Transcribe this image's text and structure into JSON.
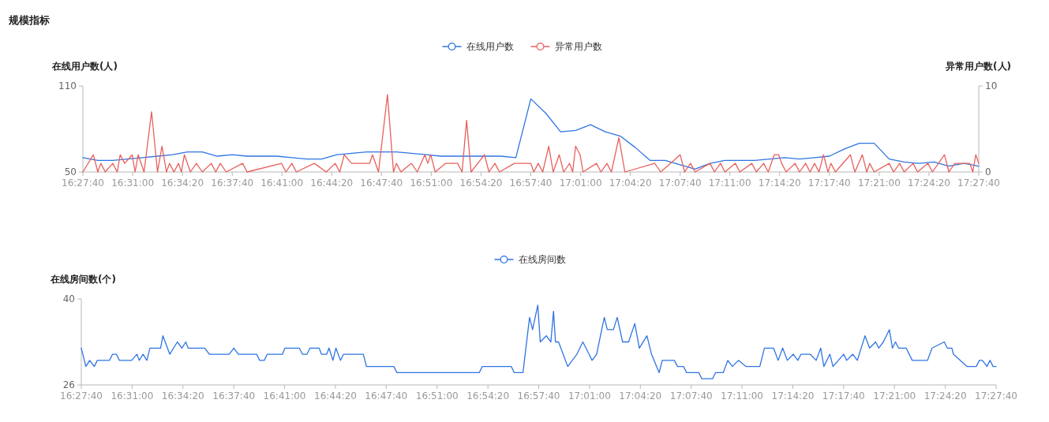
{
  "chart_data": [
    {
      "type": "line",
      "title": "规模指标",
      "ylabel": "在线用户数(人)",
      "y2label": "异常用户数(人)",
      "legend": "top",
      "xlim": [
        16.4611,
        17.4611
      ],
      "xticks": [
        {
          "value": 16.4611,
          "label": "16:27:40"
        },
        {
          "value": 16.5167,
          "label": "16:31:00"
        },
        {
          "value": 16.5722,
          "label": "16:34:20"
        },
        {
          "value": 16.6278,
          "label": "16:37:40"
        },
        {
          "value": 16.6833,
          "label": "16:41:00"
        },
        {
          "value": 16.7389,
          "label": "16:44:20"
        },
        {
          "value": 16.7944,
          "label": "16:47:40"
        },
        {
          "value": 16.85,
          "label": "16:51:00"
        },
        {
          "value": 16.9056,
          "label": "16:54:20"
        },
        {
          "value": 16.9611,
          "label": "16:57:40"
        },
        {
          "value": 17.0167,
          "label": "17:01:00"
        },
        {
          "value": 17.0722,
          "label": "17:04:20"
        },
        {
          "value": 17.1278,
          "label": "17:07:40"
        },
        {
          "value": 17.1833,
          "label": "17:11:00"
        },
        {
          "value": 17.2389,
          "label": "17:14:20"
        },
        {
          "value": 17.2944,
          "label": "17:17:40"
        },
        {
          "value": 17.35,
          "label": "17:21:00"
        },
        {
          "value": 17.4056,
          "label": "17:24:20"
        },
        {
          "value": 17.4611,
          "label": "17:27:40"
        }
      ],
      "ylim": [
        50,
        110
      ],
      "yticks": [
        50,
        110
      ],
      "y2lim": [
        0,
        10
      ],
      "y2ticks": [
        0,
        10
      ],
      "x": [
        16.4611,
        16.4778,
        16.4944,
        16.5111,
        16.5278,
        16.5444,
        16.5611,
        16.5778,
        16.5944,
        16.6111,
        16.6278,
        16.6444,
        16.6611,
        16.6778,
        16.6944,
        16.7111,
        16.7278,
        16.7444,
        16.7611,
        16.7778,
        16.7944,
        16.8111,
        16.8278,
        16.8444,
        16.8611,
        16.8778,
        16.8944,
        16.9111,
        16.9278,
        16.9444,
        16.9611,
        16.9778,
        16.9944,
        17.0111,
        17.0278,
        17.0444,
        17.0611,
        17.0778,
        17.0944,
        17.1111,
        17.1278,
        17.1444,
        17.1611,
        17.1778,
        17.1944,
        17.2111,
        17.2278,
        17.2444,
        17.2611,
        17.2778,
        17.2944,
        17.3111,
        17.3278,
        17.3444,
        17.3611,
        17.3778,
        17.3944,
        17.4111,
        17.4278,
        17.4444,
        17.4611
      ],
      "series": [
        {
          "name": "在线用户数",
          "color": "#2f74e3",
          "values": [
            60,
            58,
            58,
            59,
            60,
            61,
            62,
            64,
            64,
            61,
            62,
            61,
            61,
            61,
            60,
            59,
            59,
            62,
            63,
            64,
            64,
            64,
            63,
            62,
            61,
            61,
            61,
            61,
            61,
            60,
            101,
            91,
            78,
            79,
            83,
            78,
            75,
            67,
            58,
            58,
            55,
            52,
            56,
            58,
            58,
            58,
            59,
            60,
            59,
            60,
            61,
            66,
            70,
            70,
            59,
            57,
            56,
            57,
            54,
            56,
            54
          ]
        },
        {
          "name": "异常用户数",
          "color": "#e8605c",
          "axis": "y2",
          "x": [
            16.4611,
            16.4728,
            16.4778,
            16.4811,
            16.4861,
            16.4944,
            16.4994,
            16.5028,
            16.5078,
            16.5161,
            16.5194,
            16.5228,
            16.5294,
            16.5378,
            16.5444,
            16.5494,
            16.5544,
            16.5578,
            16.5628,
            16.5678,
            16.5711,
            16.5744,
            16.5811,
            16.5878,
            16.5944,
            16.6044,
            16.6094,
            16.6144,
            16.6211,
            16.6394,
            16.6444,
            16.6828,
            16.6878,
            16.6944,
            16.6994,
            16.7194,
            16.7328,
            16.7428,
            16.7478,
            16.7528,
            16.7611,
            16.7811,
            16.7844,
            16.7911,
            16.8011,
            16.8078,
            16.8111,
            16.8161,
            16.8278,
            16.8344,
            16.8428,
            16.8461,
            16.8494,
            16.8544,
            16.8661,
            16.8794,
            16.8844,
            16.8894,
            16.8944,
            16.9094,
            16.9144,
            16.9211,
            16.9261,
            16.9428,
            16.9478,
            16.9611,
            16.9644,
            16.9694,
            16.9744,
            16.9811,
            16.9861,
            16.9928,
            16.9978,
            17.0044,
            17.0078,
            17.0111,
            17.0161,
            17.0194,
            17.0344,
            17.0394,
            17.0461,
            17.0511,
            17.0594,
            17.0661,
            17.0994,
            17.1061,
            17.1278,
            17.1328,
            17.1394,
            17.1444,
            17.1611,
            17.1661,
            17.1728,
            17.1778,
            17.1894,
            17.1944,
            17.2078,
            17.2128,
            17.2211,
            17.2261,
            17.2328,
            17.2378,
            17.2411,
            17.2461,
            17.2561,
            17.2611,
            17.2678,
            17.2728,
            17.2778,
            17.2828,
            17.2878,
            17.2928,
            17.2961,
            17.3011,
            17.3178,
            17.3228,
            17.3311,
            17.3361,
            17.3394,
            17.3444,
            17.3611,
            17.3661,
            17.3728,
            17.3778,
            17.3878,
            17.3928,
            17.4044,
            17.4094,
            17.4228,
            17.4278,
            17.4344,
            17.4511,
            17.4544,
            17.4578,
            17.4611
          ],
          "values": [
            0,
            2,
            0,
            1,
            0,
            1,
            0,
            2,
            1,
            2,
            0,
            2,
            0,
            7,
            0,
            3,
            0,
            1,
            0,
            1,
            0,
            2,
            0,
            1,
            0,
            1,
            0,
            1,
            0,
            1,
            0,
            1,
            0,
            1,
            0,
            1,
            0,
            1,
            0,
            2,
            1,
            1,
            2,
            0,
            9,
            0,
            1,
            0,
            1,
            0,
            2,
            1,
            2,
            0,
            1,
            1,
            0,
            6,
            0,
            2,
            0,
            1,
            0,
            1,
            1,
            1,
            0,
            1,
            0,
            3,
            0,
            2,
            0,
            1,
            0,
            3,
            2,
            0,
            1,
            0,
            1,
            0,
            4,
            0,
            1,
            0,
            2,
            0,
            1,
            0,
            1,
            0,
            1,
            0,
            1,
            0,
            1,
            0,
            1,
            0,
            2,
            2,
            1,
            0,
            1,
            0,
            1,
            0,
            1,
            0,
            2,
            0,
            1,
            0,
            2,
            0,
            2,
            0,
            1,
            0,
            1,
            0,
            1,
            0,
            1,
            0,
            1,
            0,
            2,
            0,
            1,
            1,
            0,
            2,
            1
          ]
        }
      ]
    },
    {
      "type": "line",
      "ylabel": "在线房间数(个)",
      "legend": "top",
      "xlim": [
        16.4611,
        17.4611
      ],
      "xticks": [
        {
          "value": 16.4611,
          "label": "16:27:40"
        },
        {
          "value": 16.5167,
          "label": "16:31:00"
        },
        {
          "value": 16.5722,
          "label": "16:34:20"
        },
        {
          "value": 16.6278,
          "label": "16:37:40"
        },
        {
          "value": 16.6833,
          "label": "16:41:00"
        },
        {
          "value": 16.7389,
          "label": "16:44:20"
        },
        {
          "value": 16.7944,
          "label": "16:47:40"
        },
        {
          "value": 16.85,
          "label": "16:51:00"
        },
        {
          "value": 16.9056,
          "label": "16:54:20"
        },
        {
          "value": 16.9611,
          "label": "16:57:40"
        },
        {
          "value": 17.0167,
          "label": "17:01:00"
        },
        {
          "value": 17.0722,
          "label": "17:04:20"
        },
        {
          "value": 17.1278,
          "label": "17:07:40"
        },
        {
          "value": 17.1833,
          "label": "17:11:00"
        },
        {
          "value": 17.2389,
          "label": "17:14:20"
        },
        {
          "value": 17.2944,
          "label": "17:17:40"
        },
        {
          "value": 17.35,
          "label": "17:21:00"
        },
        {
          "value": 17.4056,
          "label": "17:24:20"
        },
        {
          "value": 17.4611,
          "label": "17:27:40"
        }
      ],
      "ylim": [
        26,
        40
      ],
      "yticks": [
        26,
        40
      ],
      "x": [
        16.4611,
        16.4661,
        16.4703,
        16.4753,
        16.4786,
        16.4919,
        16.4953,
        16.4994,
        16.5028,
        16.5161,
        16.5219,
        16.5244,
        16.5286,
        16.5328,
        16.5361,
        16.5478,
        16.5503,
        16.5578,
        16.5661,
        16.5711,
        16.5753,
        16.5778,
        16.5961,
        16.6011,
        16.6228,
        16.6278,
        16.6328,
        16.6528,
        16.6561,
        16.6611,
        16.6644,
        16.6811,
        16.6836,
        16.6994,
        16.7028,
        16.7078,
        16.7111,
        16.7211,
        16.7236,
        16.7294,
        16.7319,
        16.7361,
        16.7394,
        16.7444,
        16.7478,
        16.7694,
        16.7728,
        16.8028,
        16.8061,
        16.8961,
        16.8994,
        16.9311,
        16.9344,
        16.9439,
        16.9511,
        16.9544,
        16.9601,
        16.9628,
        16.9694,
        16.9744,
        16.9773,
        16.9794,
        16.9828,
        16.9928,
        16.9978,
        17.0028,
        17.0094,
        17.0161,
        17.0194,
        17.0244,
        17.0328,
        17.0361,
        17.0428,
        17.0469,
        17.0528,
        17.0594,
        17.0661,
        17.0711,
        17.0794,
        17.0844,
        17.0928,
        17.0961,
        17.1094,
        17.1128,
        17.1194,
        17.1228,
        17.1361,
        17.1394,
        17.1511,
        17.1544,
        17.1628,
        17.1678,
        17.1728,
        17.1794,
        17.1878,
        17.2028,
        17.2078,
        17.2178,
        17.2228,
        17.2278,
        17.2328,
        17.2394,
        17.2444,
        17.2478,
        17.2578,
        17.2644,
        17.2694,
        17.2728,
        17.2794,
        17.2828,
        17.2944,
        17.2978,
        17.3044,
        17.3094,
        17.3178,
        17.3228,
        17.3294,
        17.3328,
        17.3378,
        17.3444,
        17.3478,
        17.3511,
        17.3544,
        17.3628,
        17.3694,
        17.3861,
        17.3911,
        17.4044,
        17.4078,
        17.4128,
        17.4144,
        17.4294,
        17.4394,
        17.4428,
        17.4461,
        17.4511,
        17.4544,
        17.4578,
        17.4611
      ],
      "series": [
        {
          "name": "在线房间数",
          "color": "#2f74e3",
          "values": [
            32,
            29,
            30,
            29,
            30,
            30,
            31,
            31,
            30,
            30,
            31,
            30,
            31,
            30,
            32,
            32,
            34,
            31,
            33,
            32,
            33,
            32,
            32,
            31,
            31,
            32,
            31,
            31,
            30,
            30,
            31,
            31,
            32,
            32,
            31,
            31,
            32,
            32,
            31,
            31,
            32,
            30,
            32,
            30,
            31,
            31,
            29,
            29,
            28,
            28,
            29,
            29,
            28,
            28,
            37,
            35,
            39,
            33,
            34,
            33,
            38,
            33,
            33,
            29,
            30,
            31,
            33,
            31,
            30,
            31,
            37,
            35,
            35,
            37,
            33,
            33,
            36,
            32,
            34,
            31,
            28,
            30,
            30,
            29,
            29,
            28,
            28,
            27,
            27,
            28,
            28,
            30,
            29,
            30,
            29,
            29,
            32,
            32,
            30,
            32,
            30,
            31,
            30,
            31,
            31,
            30,
            32,
            29,
            31,
            29,
            31,
            30,
            31,
            30,
            34,
            32,
            33,
            32,
            33,
            35,
            32,
            33,
            32,
            32,
            30,
            30,
            32,
            33,
            32,
            32,
            31,
            29,
            29,
            30,
            30,
            29,
            30,
            29,
            29
          ]
        }
      ]
    }
  ]
}
